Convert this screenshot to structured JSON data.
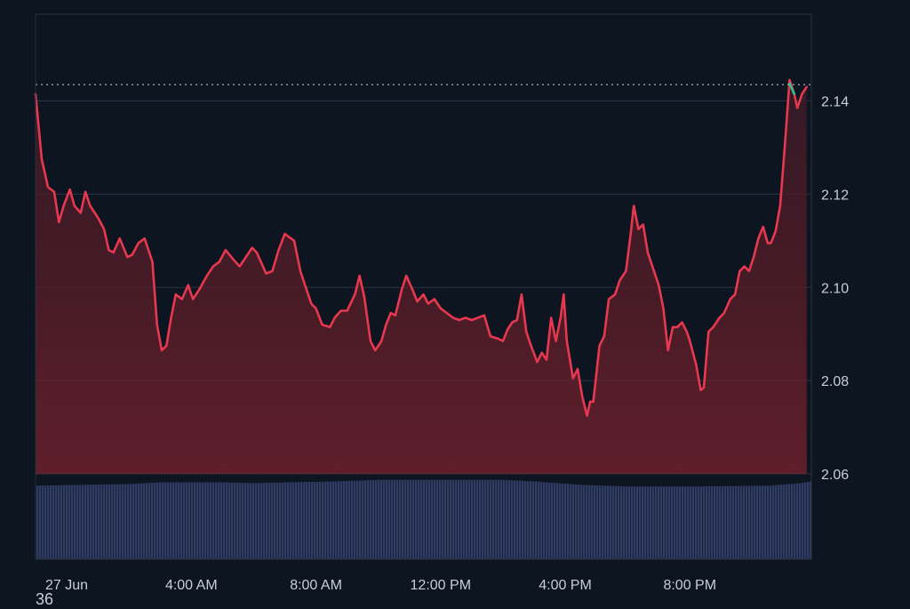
{
  "chart_data": {
    "type": "area",
    "title": "",
    "xlabel": "",
    "ylabel": "",
    "ylim": [
      2.0417,
      2.1586
    ],
    "y_ticks": [
      2.06,
      2.08,
      2.1,
      2.12,
      2.14
    ],
    "y_tick_labels": [
      "2.06",
      "2.08",
      "2.10",
      "2.12",
      "2.14"
    ],
    "x_range": [
      0,
      24.9
    ],
    "x_ticks": [
      {
        "x": 1.0,
        "label": "27 Jun"
      },
      {
        "x": 5.0,
        "label": "4:00 AM"
      },
      {
        "x": 9.0,
        "label": "8:00 AM"
      },
      {
        "x": 13.0,
        "label": "12:00 PM"
      },
      {
        "x": 17.0,
        "label": "4:00 PM"
      },
      {
        "x": 21.0,
        "label": "8:00 PM"
      }
    ],
    "grid": true,
    "reference_line": {
      "value": 2.1435,
      "style": "dotted"
    },
    "series": [
      {
        "color": "#e8384f",
        "end_color": "#2bc48a",
        "points": [
          [
            0.0,
            2.1415
          ],
          [
            0.2,
            2.1275
          ],
          [
            0.4,
            2.1215
          ],
          [
            0.6,
            2.1205
          ],
          [
            0.75,
            2.114
          ],
          [
            0.9,
            2.1175
          ],
          [
            1.1,
            2.121
          ],
          [
            1.25,
            2.1175
          ],
          [
            1.45,
            2.116
          ],
          [
            1.6,
            2.1205
          ],
          [
            1.75,
            2.1175
          ],
          [
            2.0,
            2.115
          ],
          [
            2.2,
            2.1125
          ],
          [
            2.35,
            2.108
          ],
          [
            2.5,
            2.1075
          ],
          [
            2.7,
            2.1105
          ],
          [
            2.95,
            2.1065
          ],
          [
            3.1,
            2.107
          ],
          [
            3.3,
            2.1095
          ],
          [
            3.5,
            2.1105
          ],
          [
            3.75,
            2.1055
          ],
          [
            3.9,
            2.092
          ],
          [
            4.05,
            2.0865
          ],
          [
            4.2,
            2.0875
          ],
          [
            4.35,
            2.0935
          ],
          [
            4.5,
            2.0985
          ],
          [
            4.7,
            2.0975
          ],
          [
            4.9,
            2.1005
          ],
          [
            5.05,
            2.0975
          ],
          [
            5.25,
            2.0995
          ],
          [
            5.5,
            2.1025
          ],
          [
            5.7,
            2.1045
          ],
          [
            5.9,
            2.1055
          ],
          [
            6.1,
            2.108
          ],
          [
            6.35,
            2.106
          ],
          [
            6.55,
            2.1045
          ],
          [
            6.8,
            2.107
          ],
          [
            6.95,
            2.1085
          ],
          [
            7.1,
            2.1075
          ],
          [
            7.4,
            2.103
          ],
          [
            7.6,
            2.1035
          ],
          [
            7.8,
            2.108
          ],
          [
            8.0,
            2.1115
          ],
          [
            8.3,
            2.11
          ],
          [
            8.5,
            2.1035
          ],
          [
            8.7,
            2.0995
          ],
          [
            8.85,
            2.0965
          ],
          [
            9.0,
            2.0955
          ],
          [
            9.2,
            2.092
          ],
          [
            9.45,
            2.0915
          ],
          [
            9.6,
            2.0935
          ],
          [
            9.8,
            2.095
          ],
          [
            10.0,
            2.095
          ],
          [
            10.25,
            2.0985
          ],
          [
            10.4,
            2.1025
          ],
          [
            10.55,
            2.098
          ],
          [
            10.75,
            2.0885
          ],
          [
            10.9,
            2.0865
          ],
          [
            11.1,
            2.0885
          ],
          [
            11.25,
            2.092
          ],
          [
            11.4,
            2.0945
          ],
          [
            11.55,
            2.094
          ],
          [
            11.75,
            2.0995
          ],
          [
            11.9,
            2.1025
          ],
          [
            12.1,
            2.0995
          ],
          [
            12.25,
            2.097
          ],
          [
            12.45,
            2.0985
          ],
          [
            12.6,
            2.0965
          ],
          [
            12.8,
            2.0975
          ],
          [
            13.0,
            2.0955
          ],
          [
            13.2,
            2.0945
          ],
          [
            13.4,
            2.0935
          ],
          [
            13.6,
            2.093
          ],
          [
            13.8,
            2.0935
          ],
          [
            14.0,
            2.093
          ],
          [
            14.2,
            2.0935
          ],
          [
            14.4,
            2.094
          ],
          [
            14.6,
            2.0895
          ],
          [
            14.85,
            2.089
          ],
          [
            15.0,
            2.0885
          ],
          [
            15.15,
            2.091
          ],
          [
            15.3,
            2.0925
          ],
          [
            15.45,
            2.093
          ],
          [
            15.6,
            2.0985
          ],
          [
            15.75,
            2.0905
          ],
          [
            15.9,
            2.0875
          ],
          [
            16.1,
            2.084
          ],
          [
            16.25,
            2.086
          ],
          [
            16.4,
            2.0845
          ],
          [
            16.55,
            2.0935
          ],
          [
            16.7,
            2.0885
          ],
          [
            16.85,
            2.0935
          ],
          [
            16.95,
            2.0985
          ],
          [
            17.05,
            2.0885
          ],
          [
            17.25,
            2.0805
          ],
          [
            17.4,
            2.0825
          ],
          [
            17.55,
            2.0765
          ],
          [
            17.7,
            2.0725
          ],
          [
            17.8,
            2.0755
          ],
          [
            17.9,
            2.0755
          ],
          [
            18.1,
            2.0875
          ],
          [
            18.25,
            2.0895
          ],
          [
            18.4,
            2.0975
          ],
          [
            18.6,
            2.0985
          ],
          [
            18.75,
            2.1015
          ],
          [
            18.95,
            2.1035
          ],
          [
            19.1,
            2.1115
          ],
          [
            19.2,
            2.1175
          ],
          [
            19.35,
            2.1125
          ],
          [
            19.5,
            2.1135
          ],
          [
            19.65,
            2.1075
          ],
          [
            19.85,
            2.1035
          ],
          [
            20.0,
            2.1005
          ],
          [
            20.15,
            2.0955
          ],
          [
            20.3,
            2.0865
          ],
          [
            20.45,
            2.0915
          ],
          [
            20.6,
            2.0915
          ],
          [
            20.75,
            2.0925
          ],
          [
            20.9,
            2.0905
          ],
          [
            21.0,
            2.0885
          ],
          [
            21.2,
            2.0835
          ],
          [
            21.35,
            2.078
          ],
          [
            21.45,
            2.0785
          ],
          [
            21.6,
            2.0905
          ],
          [
            21.75,
            2.0915
          ],
          [
            21.95,
            2.0935
          ],
          [
            22.1,
            2.0945
          ],
          [
            22.3,
            2.0975
          ],
          [
            22.45,
            2.0985
          ],
          [
            22.6,
            2.1035
          ],
          [
            22.75,
            2.1045
          ],
          [
            22.9,
            2.1035
          ],
          [
            23.05,
            2.1065
          ],
          [
            23.2,
            2.1105
          ],
          [
            23.35,
            2.113
          ],
          [
            23.5,
            2.1095
          ],
          [
            23.6,
            2.1095
          ],
          [
            23.75,
            2.112
          ],
          [
            23.9,
            2.1175
          ],
          [
            24.05,
            2.1305
          ],
          [
            24.2,
            2.1445
          ],
          [
            24.35,
            2.1415
          ],
          [
            24.45,
            2.1385
          ],
          [
            24.6,
            2.1415
          ],
          [
            24.75,
            2.143
          ]
        ]
      }
    ],
    "volume_level": [
      [
        0.0,
        0.89
      ],
      [
        1.5,
        0.9
      ],
      [
        3.0,
        0.91
      ],
      [
        4.0,
        0.93
      ],
      [
        6.0,
        0.93
      ],
      [
        7.0,
        0.92
      ],
      [
        8.0,
        0.93
      ],
      [
        9.5,
        0.94
      ],
      [
        11.0,
        0.96
      ],
      [
        12.5,
        0.96
      ],
      [
        15.0,
        0.96
      ],
      [
        16.0,
        0.94
      ],
      [
        17.5,
        0.9
      ],
      [
        19.0,
        0.88
      ],
      [
        21.0,
        0.88
      ],
      [
        23.5,
        0.89
      ],
      [
        24.5,
        0.92
      ],
      [
        24.85,
        0.94
      ]
    ]
  },
  "footer": {
    "text": "36"
  }
}
